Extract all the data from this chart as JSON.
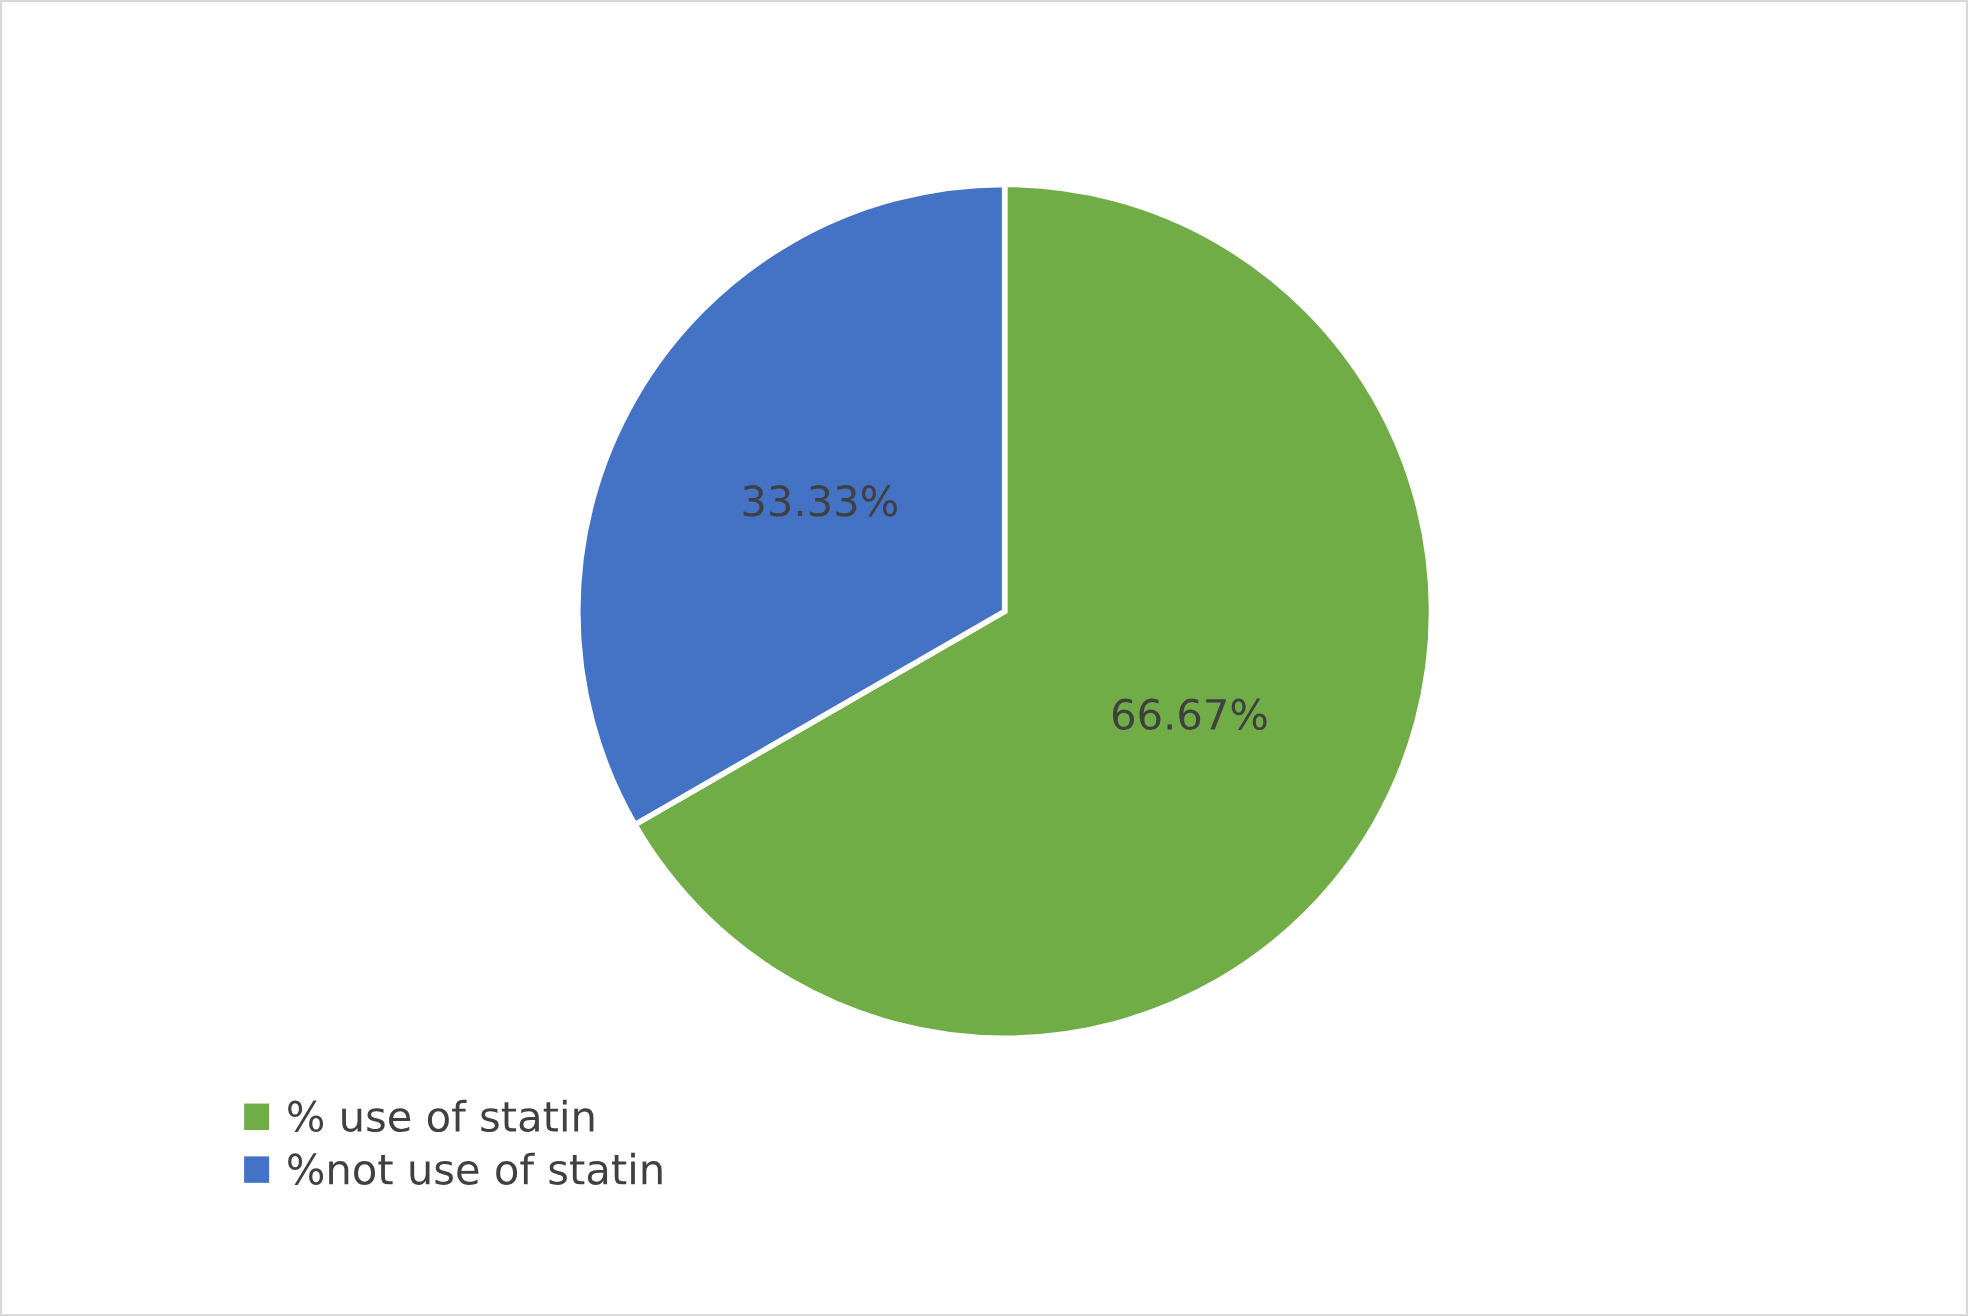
{
  "chart_data": {
    "type": "pie",
    "categories": [
      "% use of statin",
      "%not use of statin"
    ],
    "values": [
      66.67,
      33.33
    ],
    "value_labels": [
      "66.67%",
      "33.33%"
    ],
    "colors": [
      "#70ad47",
      "#4472c4"
    ],
    "legend": "bottom left"
  }
}
